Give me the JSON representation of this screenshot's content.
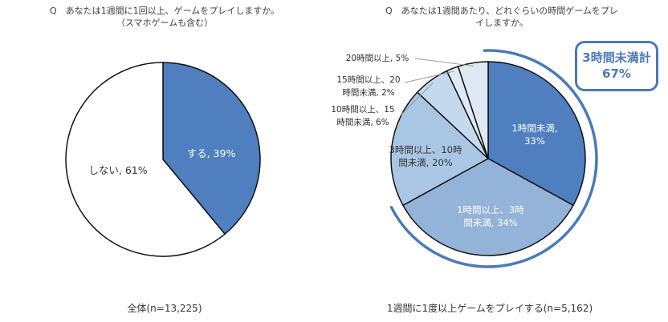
{
  "left_chart": {
    "question_line1": "Q　あなたは1週間に1回以上、ゲームをプレイしますか。",
    "question_line2": "（スマホゲームも含む）",
    "footer": "全体(n=13,225)"
  },
  "right_chart": {
    "question_line1": "Q　あなたは1週間あたり、どれぐらいの時間ゲームをプレ",
    "question_line2": "イしますか。",
    "footer": "1週間に1度以上ゲームをプレイする(n=5,162)",
    "callout_line1": "3時間未満計",
    "callout_line2": "67%"
  },
  "colors": {
    "slice_dark": "#4f7fbf",
    "slice_mid": "#94b3d8",
    "slice_light": "#a9c7e4",
    "slice_pale": "#c5d9ee",
    "slice_paler": "#dfe9f5",
    "accent": "#4a7ab8"
  },
  "chart_data": [
    {
      "type": "pie",
      "categories": [
        "する",
        "しない"
      ],
      "values": [
        39,
        61
      ],
      "labels": [
        "する, 39%",
        "しない, 61%"
      ]
    },
    {
      "type": "pie",
      "categories": [
        "1時間未満",
        "1時間以上、3時間未満",
        "3時間以上、10時間未満",
        "10時間以上、15時間未満",
        "15時間以上、20時間未満",
        "20時間以上"
      ],
      "values": [
        33,
        34,
        20,
        6,
        2,
        5
      ],
      "labels": [
        [
          "1時間未満,",
          "33%"
        ],
        [
          "1時間以上、3時",
          "間未満, 34%"
        ],
        [
          "3時間以上、10時",
          "間未満, 20%"
        ],
        [
          "10時間以上、15",
          "時間未満, 6%"
        ],
        [
          "15時間以上、20",
          "時間未満, 2%"
        ],
        [
          "20時間以上, 5%"
        ]
      ]
    }
  ]
}
